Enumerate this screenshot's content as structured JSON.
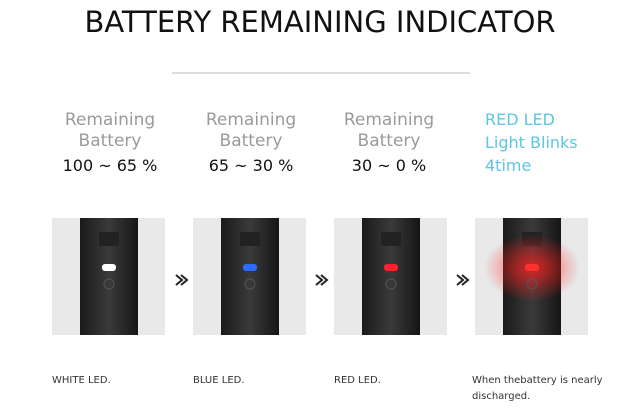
{
  "title": "BATTERY REMAINING INDICATOR",
  "columns": [
    {
      "label_lines": [
        "Remaining",
        "Battery"
      ],
      "range": "100 ~ 65 %",
      "caption_lines": [
        "WHITE LED."
      ]
    },
    {
      "label_lines": [
        "Remaining",
        "Battery"
      ],
      "range": "65 ~ 30 %",
      "caption_lines": [
        "BLUE LED."
      ]
    },
    {
      "label_lines": [
        "Remaining",
        "Battery"
      ],
      "range": "30 ~ 0 %",
      "caption_lines": [
        "RED LED."
      ]
    },
    {
      "label_lines": [
        "RED LED",
        "Light Blinks",
        "4time"
      ],
      "caption_lines": [
        "When thebattery is nearly",
        "discharged."
      ]
    }
  ]
}
